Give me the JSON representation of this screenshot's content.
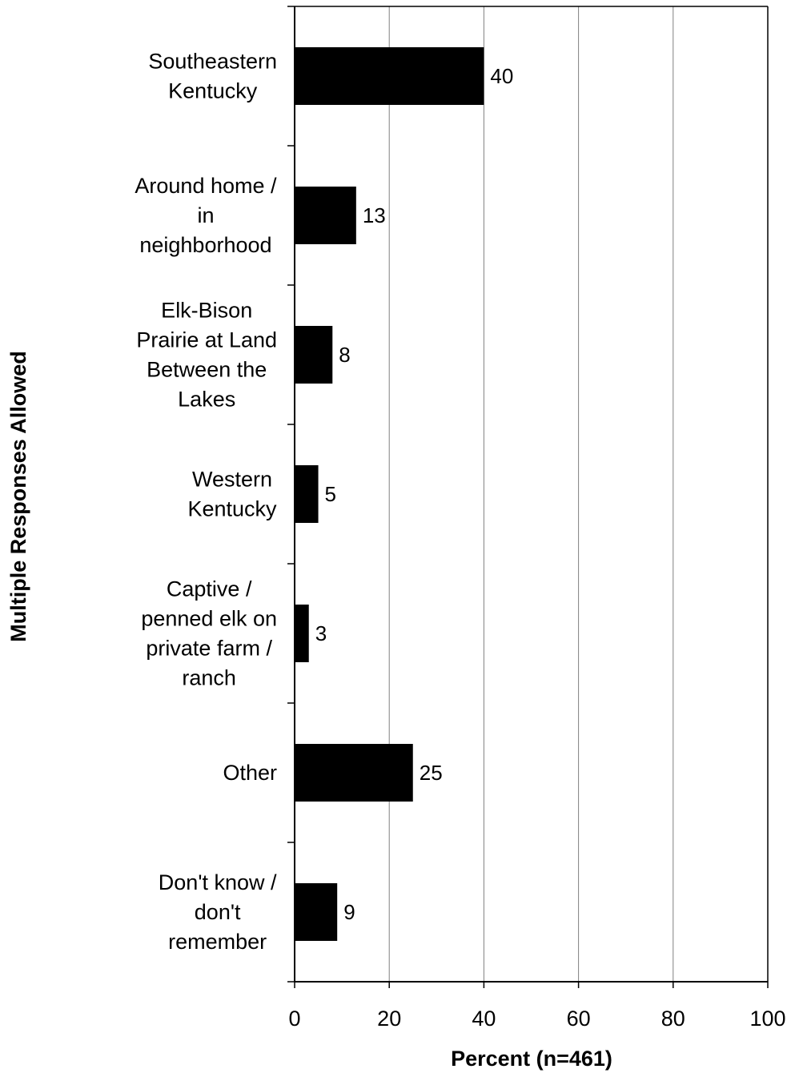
{
  "chart_data": {
    "type": "bar",
    "orientation": "horizontal",
    "categories": [
      [
        "Southeastern",
        "Kentucky"
      ],
      [
        "Around home /",
        "in",
        "neighborhood"
      ],
      [
        "Elk-Bison",
        "Prairie at Land",
        "Between the",
        "Lakes"
      ],
      [
        "Western",
        "Kentucky"
      ],
      [
        "Captive /",
        "penned elk on",
        "private farm /",
        "ranch"
      ],
      [
        "Other"
      ],
      [
        "Don't know /",
        "don't",
        "remember"
      ]
    ],
    "values": [
      40,
      13,
      8,
      5,
      3,
      25,
      9
    ],
    "value_labels": [
      "40",
      "13",
      "8",
      "5",
      "3",
      "25",
      "9"
    ],
    "xlim": [
      0,
      100
    ],
    "xticks": [
      0,
      20,
      40,
      60,
      80,
      100
    ],
    "xtick_labels": [
      "0",
      "20",
      "40",
      "60",
      "80",
      "100"
    ],
    "xlabel": "Percent (n=461)",
    "ylabel": "Multiple Responses Allowed",
    "title": "",
    "grid": "vertical",
    "bar_color": "#000000"
  }
}
